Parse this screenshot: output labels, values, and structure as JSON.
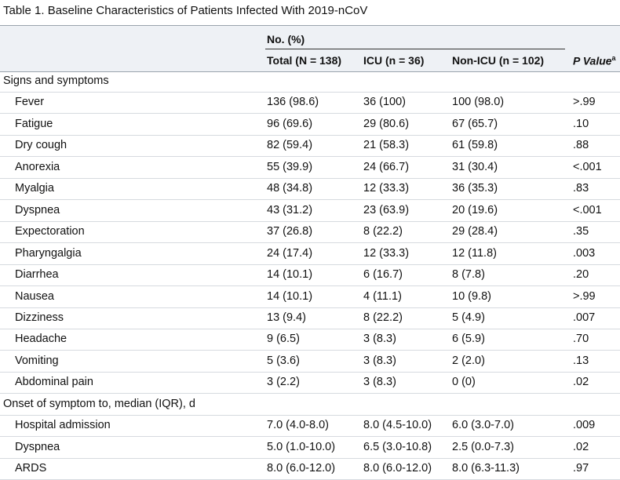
{
  "title": "Table 1. Baseline Characteristics of Patients Infected With 2019-nCoV",
  "header": {
    "group": "No. (%)",
    "columns": [
      "Total (N = 138)",
      "ICU (n = 36)",
      "Non-ICU (n = 102)"
    ],
    "p_value": "P Value",
    "p_value_note": "a"
  },
  "sections": [
    {
      "label": "Signs and symptoms",
      "rows": [
        [
          "Fever",
          "136 (98.6)",
          "36 (100)",
          "100 (98.0)",
          ">.99"
        ],
        [
          "Fatigue",
          "96 (69.6)",
          "29 (80.6)",
          "67 (65.7)",
          ".10"
        ],
        [
          "Dry cough",
          "82 (59.4)",
          "21 (58.3)",
          "61 (59.8)",
          ".88"
        ],
        [
          "Anorexia",
          "55 (39.9)",
          "24 (66.7)",
          "31 (30.4)",
          "<.001"
        ],
        [
          "Myalgia",
          "48 (34.8)",
          "12 (33.3)",
          "36 (35.3)",
          ".83"
        ],
        [
          "Dyspnea",
          "43 (31.2)",
          "23 (63.9)",
          "20 (19.6)",
          "<.001"
        ],
        [
          "Expectoration",
          "37 (26.8)",
          "8 (22.2)",
          "29 (28.4)",
          ".35"
        ],
        [
          "Pharyngalgia",
          "24 (17.4)",
          "12 (33.3)",
          "12 (11.8)",
          ".003"
        ],
        [
          "Diarrhea",
          "14 (10.1)",
          "6 (16.7)",
          "8 (7.8)",
          ".20"
        ],
        [
          "Nausea",
          "14 (10.1)",
          "4 (11.1)",
          "10 (9.8)",
          ">.99"
        ],
        [
          "Dizziness",
          "13 (9.4)",
          "8 (22.2)",
          "5 (4.9)",
          ".007"
        ],
        [
          "Headache",
          "9 (6.5)",
          "3 (8.3)",
          "6 (5.9)",
          ".70"
        ],
        [
          "Vomiting",
          "5 (3.6)",
          "3 (8.3)",
          "2 (2.0)",
          ".13"
        ],
        [
          "Abdominal pain",
          "3 (2.2)",
          "3 (8.3)",
          "0 (0)",
          ".02"
        ]
      ]
    },
    {
      "label": "Onset of symptom to, median (IQR), d",
      "rows": [
        [
          "Hospital admission",
          "7.0 (4.0-8.0)",
          "8.0 (4.5-10.0)",
          "6.0 (3.0-7.0)",
          ".009"
        ],
        [
          "Dyspnea",
          "5.0 (1.0-10.0)",
          "6.5 (3.0-10.8)",
          "2.5 (0.0-7.3)",
          ".02"
        ],
        [
          "ARDS",
          "8.0 (6.0-12.0)",
          "8.0 (6.0-12.0)",
          "8.0 (6.3-11.3)",
          ".97"
        ]
      ]
    }
  ]
}
